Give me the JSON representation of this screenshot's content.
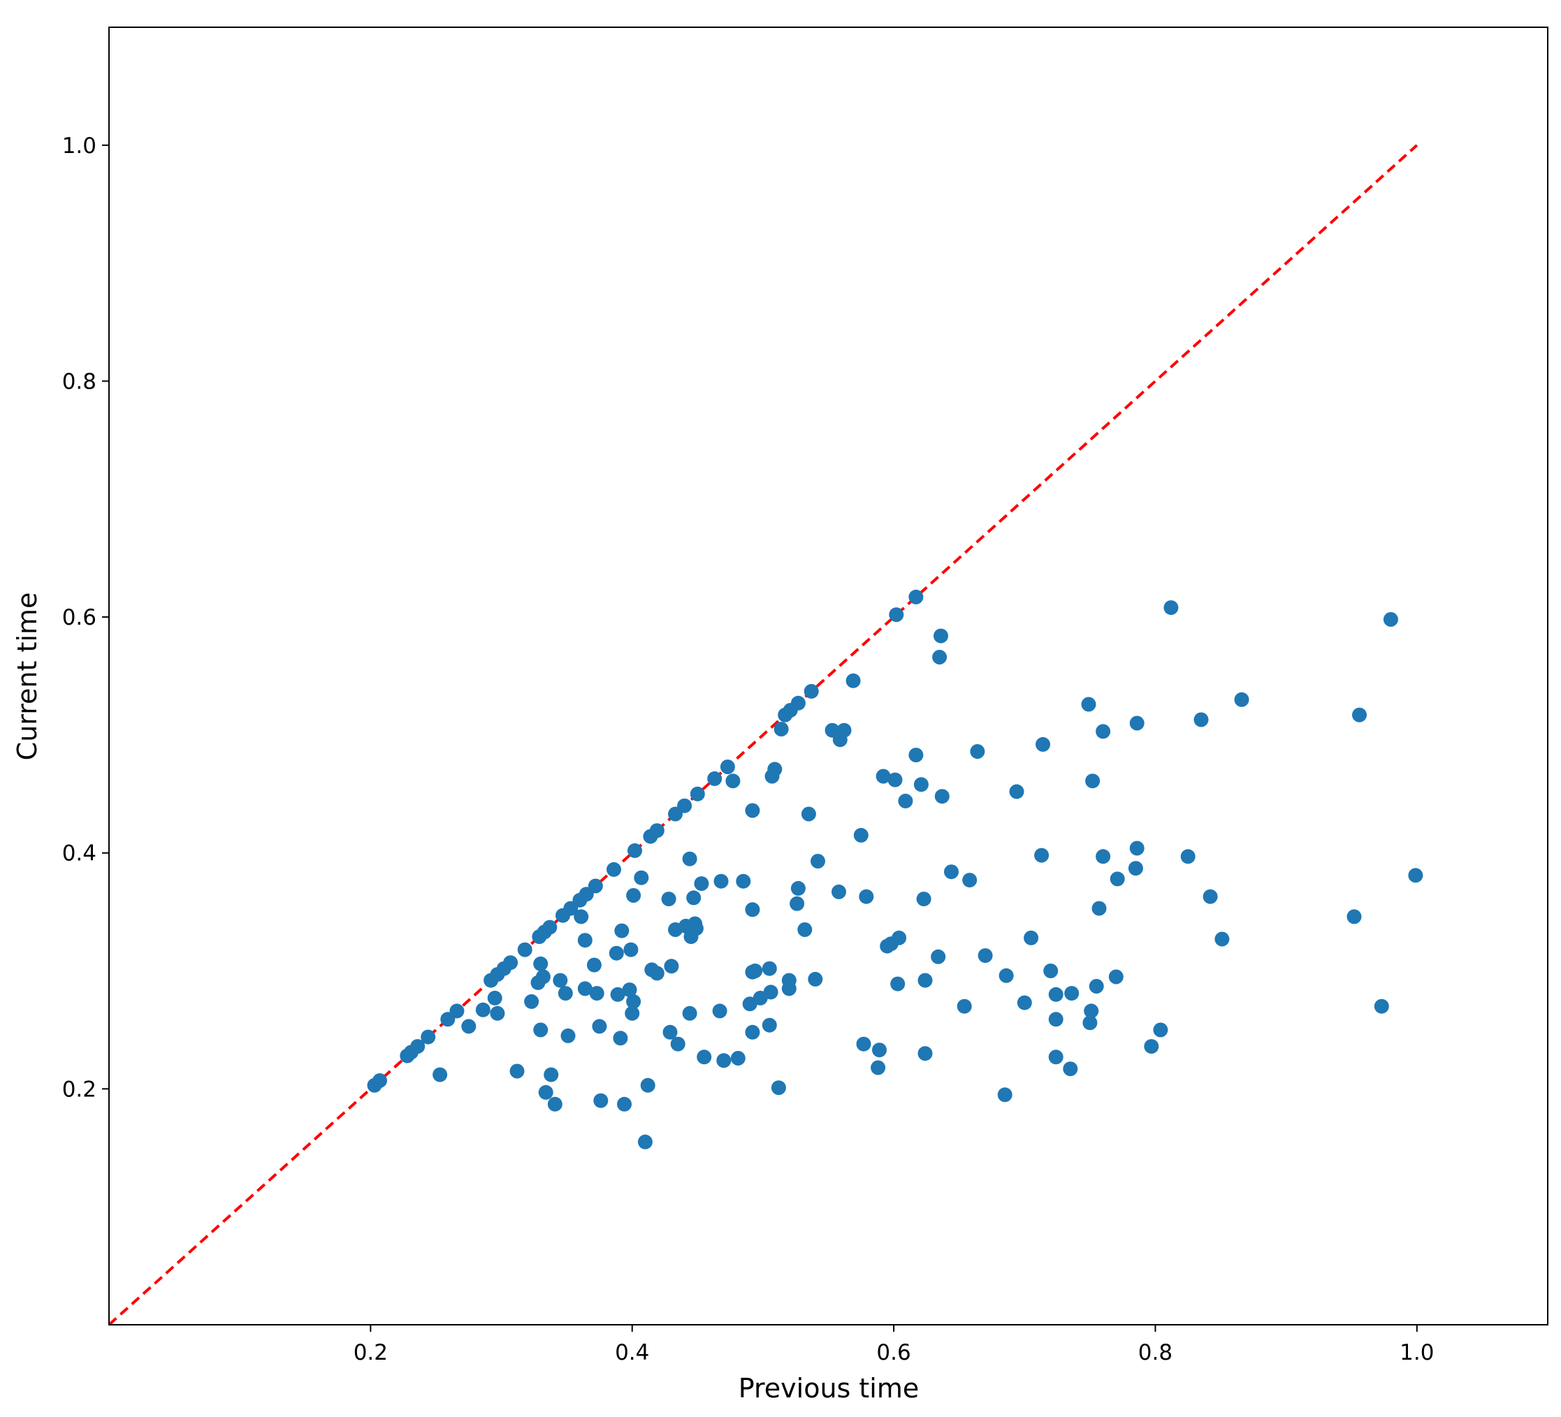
{
  "chart_data": {
    "type": "scatter",
    "title": "",
    "xlabel": "Previous time",
    "ylabel": "Current time",
    "xlim": [
      0.0,
      1.1
    ],
    "ylim": [
      0.0,
      1.1
    ],
    "x_ticks": [
      {
        "value": 0.2,
        "label": "0.2"
      },
      {
        "value": 0.4,
        "label": "0.4"
      },
      {
        "value": 0.6,
        "label": "0.6"
      },
      {
        "value": 0.8,
        "label": "0.8"
      },
      {
        "value": 1.0,
        "label": "1.0"
      }
    ],
    "y_ticks": [
      {
        "value": 0.2,
        "label": "0.2"
      },
      {
        "value": 0.4,
        "label": "0.4"
      },
      {
        "value": 0.6,
        "label": "0.6"
      },
      {
        "value": 0.8,
        "label": "0.8"
      },
      {
        "value": 1.0,
        "label": "1.0"
      }
    ],
    "grid": false,
    "legend": "none",
    "reference_line": {
      "style": "dashed",
      "color": "#ff0000",
      "from": [
        0.0,
        0.0
      ],
      "to": [
        1.0,
        1.0
      ]
    },
    "series": [
      {
        "color": "#1f77b4",
        "points": [
          [
            0.203,
            0.203
          ],
          [
            0.207,
            0.207
          ],
          [
            0.228,
            0.228
          ],
          [
            0.231,
            0.231
          ],
          [
            0.236,
            0.236
          ],
          [
            0.244,
            0.244
          ],
          [
            0.259,
            0.259
          ],
          [
            0.266,
            0.266
          ],
          [
            0.292,
            0.292
          ],
          [
            0.297,
            0.297
          ],
          [
            0.302,
            0.302
          ],
          [
            0.307,
            0.307
          ],
          [
            0.318,
            0.318
          ],
          [
            0.329,
            0.329
          ],
          [
            0.333,
            0.333
          ],
          [
            0.337,
            0.337
          ],
          [
            0.347,
            0.347
          ],
          [
            0.353,
            0.353
          ],
          [
            0.36,
            0.36
          ],
          [
            0.365,
            0.365
          ],
          [
            0.372,
            0.372
          ],
          [
            0.386,
            0.386
          ],
          [
            0.402,
            0.402
          ],
          [
            0.414,
            0.414
          ],
          [
            0.419,
            0.419
          ],
          [
            0.433,
            0.433
          ],
          [
            0.44,
            0.44
          ],
          [
            0.45,
            0.45
          ],
          [
            0.463,
            0.463
          ],
          [
            0.473,
            0.473
          ],
          [
            0.517,
            0.517
          ],
          [
            0.521,
            0.521
          ],
          [
            0.527,
            0.527
          ],
          [
            0.537,
            0.537
          ],
          [
            0.602,
            0.602
          ],
          [
            0.617,
            0.617
          ],
          [
            0.253,
            0.212
          ],
          [
            0.275,
            0.253
          ],
          [
            0.286,
            0.267
          ],
          [
            0.295,
            0.277
          ],
          [
            0.297,
            0.264
          ],
          [
            0.312,
            0.215
          ],
          [
            0.323,
            0.274
          ],
          [
            0.328,
            0.29
          ],
          [
            0.33,
            0.25
          ],
          [
            0.33,
            0.306
          ],
          [
            0.332,
            0.295
          ],
          [
            0.334,
            0.197
          ],
          [
            0.338,
            0.212
          ],
          [
            0.341,
            0.187
          ],
          [
            0.345,
            0.292
          ],
          [
            0.349,
            0.281
          ],
          [
            0.351,
            0.245
          ],
          [
            0.361,
            0.346
          ],
          [
            0.364,
            0.285
          ],
          [
            0.364,
            0.326
          ],
          [
            0.371,
            0.305
          ],
          [
            0.373,
            0.281
          ],
          [
            0.375,
            0.253
          ],
          [
            0.376,
            0.19
          ],
          [
            0.388,
            0.315
          ],
          [
            0.389,
            0.28
          ],
          [
            0.391,
            0.243
          ],
          [
            0.392,
            0.334
          ],
          [
            0.394,
            0.187
          ],
          [
            0.398,
            0.284
          ],
          [
            0.399,
            0.318
          ],
          [
            0.4,
            0.264
          ],
          [
            0.401,
            0.364
          ],
          [
            0.401,
            0.274
          ],
          [
            0.41,
            0.155
          ],
          [
            0.407,
            0.379
          ],
          [
            0.412,
            0.203
          ],
          [
            0.415,
            0.301
          ],
          [
            0.419,
            0.298
          ],
          [
            0.428,
            0.361
          ],
          [
            0.429,
            0.248
          ],
          [
            0.43,
            0.304
          ],
          [
            0.433,
            0.335
          ],
          [
            0.435,
            0.238
          ],
          [
            0.441,
            0.338
          ],
          [
            0.444,
            0.395
          ],
          [
            0.444,
            0.264
          ],
          [
            0.445,
            0.329
          ],
          [
            0.447,
            0.362
          ],
          [
            0.448,
            0.34
          ],
          [
            0.449,
            0.336
          ],
          [
            0.453,
            0.374
          ],
          [
            0.455,
            0.227
          ],
          [
            0.467,
            0.266
          ],
          [
            0.468,
            0.376
          ],
          [
            0.47,
            0.224
          ],
          [
            0.477,
            0.461
          ],
          [
            0.481,
            0.226
          ],
          [
            0.485,
            0.376
          ],
          [
            0.49,
            0.272
          ],
          [
            0.492,
            0.352
          ],
          [
            0.492,
            0.299
          ],
          [
            0.492,
            0.248
          ],
          [
            0.492,
            0.436
          ],
          [
            0.494,
            0.3
          ],
          [
            0.498,
            0.277
          ],
          [
            0.505,
            0.254
          ],
          [
            0.505,
            0.302
          ],
          [
            0.506,
            0.282
          ],
          [
            0.507,
            0.465
          ],
          [
            0.509,
            0.471
          ],
          [
            0.512,
            0.201
          ],
          [
            0.514,
            0.505
          ],
          [
            0.52,
            0.292
          ],
          [
            0.52,
            0.285
          ],
          [
            0.526,
            0.357
          ],
          [
            0.527,
            0.37
          ],
          [
            0.532,
            0.335
          ],
          [
            0.535,
            0.433
          ],
          [
            0.54,
            0.293
          ],
          [
            0.542,
            0.393
          ],
          [
            0.553,
            0.504
          ],
          [
            0.558,
            0.367
          ],
          [
            0.559,
            0.496
          ],
          [
            0.562,
            0.504
          ],
          [
            0.569,
            0.546
          ],
          [
            0.575,
            0.415
          ],
          [
            0.577,
            0.238
          ],
          [
            0.579,
            0.363
          ],
          [
            0.588,
            0.218
          ],
          [
            0.589,
            0.233
          ],
          [
            0.592,
            0.465
          ],
          [
            0.595,
            0.321
          ],
          [
            0.598,
            0.323
          ],
          [
            0.601,
            0.462
          ],
          [
            0.603,
            0.289
          ],
          [
            0.604,
            0.328
          ],
          [
            0.609,
            0.444
          ],
          [
            0.617,
            0.483
          ],
          [
            0.621,
            0.458
          ],
          [
            0.623,
            0.361
          ],
          [
            0.624,
            0.23
          ],
          [
            0.624,
            0.292
          ],
          [
            0.634,
            0.312
          ],
          [
            0.635,
            0.566
          ],
          [
            0.636,
            0.584
          ],
          [
            0.637,
            0.448
          ],
          [
            0.644,
            0.384
          ],
          [
            0.654,
            0.27
          ],
          [
            0.658,
            0.377
          ],
          [
            0.664,
            0.486
          ],
          [
            0.67,
            0.313
          ],
          [
            0.685,
            0.195
          ],
          [
            0.686,
            0.296
          ],
          [
            0.694,
            0.452
          ],
          [
            0.7,
            0.273
          ],
          [
            0.705,
            0.328
          ],
          [
            0.713,
            0.398
          ],
          [
            0.714,
            0.492
          ],
          [
            0.72,
            0.3
          ],
          [
            0.724,
            0.28
          ],
          [
            0.724,
            0.259
          ],
          [
            0.724,
            0.227
          ],
          [
            0.735,
            0.217
          ],
          [
            0.736,
            0.281
          ],
          [
            0.749,
            0.526
          ],
          [
            0.75,
            0.256
          ],
          [
            0.751,
            0.266
          ],
          [
            0.752,
            0.461
          ],
          [
            0.755,
            0.287
          ],
          [
            0.757,
            0.353
          ],
          [
            0.76,
            0.397
          ],
          [
            0.76,
            0.503
          ],
          [
            0.77,
            0.295
          ],
          [
            0.771,
            0.378
          ],
          [
            0.785,
            0.387
          ],
          [
            0.786,
            0.404
          ],
          [
            0.786,
            0.51
          ],
          [
            0.797,
            0.236
          ],
          [
            0.804,
            0.25
          ],
          [
            0.812,
            0.608
          ],
          [
            0.825,
            0.397
          ],
          [
            0.835,
            0.513
          ],
          [
            0.842,
            0.363
          ],
          [
            0.851,
            0.327
          ],
          [
            0.866,
            0.53
          ],
          [
            0.952,
            0.346
          ],
          [
            0.956,
            0.517
          ],
          [
            0.973,
            0.27
          ],
          [
            0.98,
            0.598
          ],
          [
            0.999,
            0.381
          ]
        ]
      }
    ]
  }
}
